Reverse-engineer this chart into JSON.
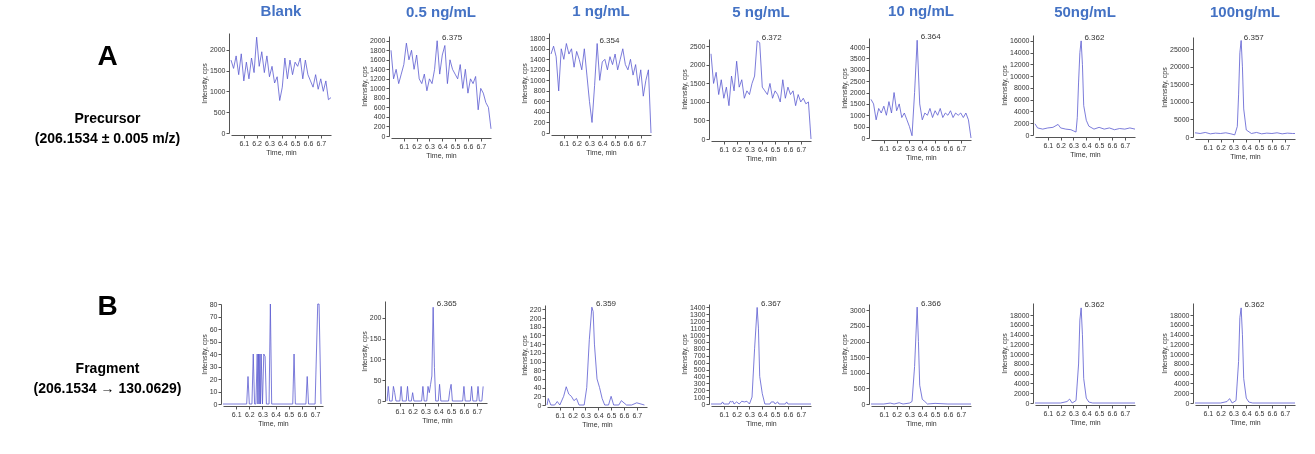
{
  "chart_data": [
    {
      "type": "line",
      "title": "Blank",
      "xlabel": "Time, min",
      "ylabel": "Intensity, cps",
      "annotations": [
        "A",
        "Precursor",
        "(206.1534 ± 0.005 m/z)"
      ],
      "xlim": [
        6.0,
        6.78
      ],
      "xticks": [
        6.1,
        6.2,
        6.3,
        6.4,
        6.5,
        6.6,
        6.7
      ],
      "ylim": [
        0,
        2400
      ],
      "yticks": [
        0,
        500,
        1000,
        1500,
        2000
      ],
      "x": [
        6.0,
        6.02,
        6.04,
        6.06,
        6.08,
        6.1,
        6.12,
        6.14,
        6.16,
        6.18,
        6.2,
        6.22,
        6.24,
        6.26,
        6.28,
        6.3,
        6.32,
        6.34,
        6.36,
        6.38,
        6.4,
        6.42,
        6.44,
        6.46,
        6.48,
        6.5,
        6.52,
        6.54,
        6.56,
        6.58,
        6.6,
        6.62,
        6.64,
        6.66,
        6.68,
        6.7,
        6.72,
        6.74,
        6.76,
        6.78
      ],
      "series": [
        {
          "color": "#5b5bd0",
          "values": [
            1750,
            1550,
            1850,
            1400,
            1900,
            1250,
            1700,
            1300,
            1800,
            1450,
            2300,
            1600,
            1950,
            1450,
            1850,
            1350,
            1600,
            1200,
            1350,
            780,
            1100,
            1800,
            1300,
            1750,
            1400,
            1700,
            1600,
            1800,
            1300,
            1750,
            1400,
            1250,
            1100,
            1400,
            1050,
            1300,
            1000,
            1250,
            800,
            850
          ]
        }
      ],
      "marker": "none",
      "grid": false
    },
    {
      "type": "line",
      "title": "0.5 ng/mL",
      "xlabel": "Time, min",
      "ylabel": "Intensity, cps",
      "annotations": [
        {
          "text": "6.375",
          "x": 6.375,
          "y": 2000
        }
      ],
      "xlim": [
        6.0,
        6.78
      ],
      "xticks": [
        6.1,
        6.2,
        6.3,
        6.4,
        6.5,
        6.6,
        6.7
      ],
      "ylim": [
        0,
        2100
      ],
      "yticks": [
        0,
        200,
        400,
        600,
        800,
        1000,
        1200,
        1400,
        1600,
        1800,
        2000
      ],
      "x": [
        6.0,
        6.02,
        6.04,
        6.06,
        6.08,
        6.1,
        6.12,
        6.14,
        6.16,
        6.18,
        6.2,
        6.22,
        6.24,
        6.26,
        6.28,
        6.3,
        6.32,
        6.34,
        6.36,
        6.38,
        6.4,
        6.42,
        6.44,
        6.46,
        6.48,
        6.5,
        6.52,
        6.54,
        6.56,
        6.58,
        6.6,
        6.62,
        6.64,
        6.66,
        6.68,
        6.7,
        6.72,
        6.74,
        6.76,
        6.78
      ],
      "series": [
        {
          "color": "#5b5bd0",
          "values": [
            1800,
            1200,
            1400,
            1100,
            1300,
            1500,
            1950,
            1600,
            1800,
            1400,
            1700,
            1200,
            1100,
            1300,
            950,
            1200,
            1100,
            1400,
            2000,
            1300,
            1700,
            1900,
            1100,
            1600,
            1400,
            1300,
            1200,
            1500,
            1000,
            1400,
            900,
            1200,
            1100,
            1250,
            550,
            1000,
            900,
            700,
            600,
            150
          ]
        }
      ],
      "marker": "none",
      "grid": false
    },
    {
      "type": "line",
      "title": "1 ng/mL",
      "xlabel": "Time, min",
      "ylabel": "Intensity, cps",
      "annotations": [
        {
          "text": "6.354",
          "x": 6.354,
          "y": 1700
        }
      ],
      "xlim": [
        6.0,
        6.78
      ],
      "xticks": [
        6.1,
        6.2,
        6.3,
        6.4,
        6.5,
        6.6,
        6.7
      ],
      "ylim": [
        0,
        1900
      ],
      "yticks": [
        0,
        200,
        400,
        600,
        800,
        1000,
        1200,
        1400,
        1600,
        1800
      ],
      "x": [
        6.0,
        6.02,
        6.04,
        6.06,
        6.08,
        6.1,
        6.12,
        6.14,
        6.16,
        6.18,
        6.2,
        6.22,
        6.24,
        6.26,
        6.28,
        6.3,
        6.32,
        6.34,
        6.36,
        6.38,
        6.4,
        6.42,
        6.44,
        6.46,
        6.48,
        6.5,
        6.52,
        6.54,
        6.56,
        6.58,
        6.6,
        6.62,
        6.64,
        6.66,
        6.68,
        6.7,
        6.72,
        6.74,
        6.76,
        6.78
      ],
      "series": [
        {
          "color": "#5b5bd0",
          "values": [
            1500,
            1650,
            1450,
            800,
            1600,
            1400,
            1700,
            1500,
            1600,
            1250,
            1550,
            1400,
            1200,
            1600,
            1100,
            600,
            200,
            900,
            1700,
            1000,
            1350,
            1400,
            1200,
            1450,
            1300,
            1500,
            1200,
            1400,
            1600,
            1300,
            1200,
            1400,
            1100,
            1300,
            900,
            1200,
            700,
            1000,
            1200,
            0
          ]
        }
      ],
      "marker": "none",
      "grid": false
    },
    {
      "type": "line",
      "title": "5 ng/mL",
      "xlabel": "Time, min",
      "ylabel": "Intensity, cps",
      "annotations": [
        {
          "text": "6.372",
          "x": 6.372,
          "y": 2650
        }
      ],
      "xlim": [
        6.0,
        6.78
      ],
      "xticks": [
        6.1,
        6.2,
        6.3,
        6.4,
        6.5,
        6.6,
        6.7
      ],
      "ylim": [
        0,
        2700
      ],
      "yticks": [
        0,
        500,
        1000,
        1500,
        2000,
        2500
      ],
      "x": [
        6.0,
        6.02,
        6.04,
        6.06,
        6.08,
        6.1,
        6.12,
        6.14,
        6.16,
        6.18,
        6.2,
        6.22,
        6.24,
        6.26,
        6.28,
        6.3,
        6.32,
        6.34,
        6.36,
        6.38,
        6.4,
        6.42,
        6.44,
        6.46,
        6.48,
        6.5,
        6.52,
        6.54,
        6.56,
        6.58,
        6.6,
        6.62,
        6.64,
        6.66,
        6.68,
        6.7,
        6.72,
        6.74,
        6.76,
        6.78
      ],
      "series": [
        {
          "color": "#5b5bd0",
          "values": [
            2300,
            1500,
            1800,
            1200,
            1600,
            1100,
            1400,
            900,
            1700,
            1300,
            2100,
            1400,
            1600,
            1100,
            1300,
            1200,
            1500,
            1700,
            2650,
            2600,
            1400,
            1300,
            1200,
            1500,
            1100,
            1300,
            1200,
            1000,
            1600,
            1100,
            1400,
            1200,
            1300,
            900,
            1200,
            1000,
            1100,
            950,
            1000,
            0
          ]
        }
      ],
      "marker": "none",
      "grid": false
    },
    {
      "type": "line",
      "title": "10 ng/mL",
      "xlabel": "Time, min",
      "ylabel": "Intensity, cps",
      "annotations": [
        {
          "text": "6.364",
          "x": 6.364,
          "y": 4300
        }
      ],
      "xlim": [
        6.0,
        6.78
      ],
      "xticks": [
        6.1,
        6.2,
        6.3,
        6.4,
        6.5,
        6.6,
        6.7
      ],
      "ylim": [
        0,
        4400
      ],
      "yticks": [
        0,
        500,
        1000,
        1500,
        2000,
        2500,
        3000,
        3500,
        4000
      ],
      "x": [
        6.0,
        6.02,
        6.04,
        6.06,
        6.08,
        6.1,
        6.12,
        6.14,
        6.16,
        6.18,
        6.2,
        6.22,
        6.24,
        6.26,
        6.28,
        6.3,
        6.32,
        6.34,
        6.36,
        6.38,
        6.4,
        6.42,
        6.44,
        6.46,
        6.48,
        6.5,
        6.52,
        6.54,
        6.56,
        6.58,
        6.6,
        6.62,
        6.64,
        6.66,
        6.68,
        6.7,
        6.72,
        6.74,
        6.76,
        6.78
      ],
      "series": [
        {
          "color": "#5b5bd0",
          "values": [
            1700,
            1500,
            800,
            1300,
            1100,
            1400,
            1000,
            1600,
            1100,
            2000,
            1200,
            1500,
            900,
            1100,
            800,
            500,
            100,
            2000,
            4300,
            1500,
            800,
            1100,
            1000,
            1300,
            900,
            1200,
            1000,
            1300,
            900,
            1100,
            1000,
            1200,
            900,
            1100,
            1000,
            1100,
            900,
            1100,
            800,
            0
          ]
        }
      ],
      "marker": "none",
      "grid": false
    },
    {
      "type": "line",
      "title": "50ng/mL",
      "xlabel": "Time, min",
      "ylabel": "Intensity, cps",
      "annotations": [
        {
          "text": "6.362",
          "x": 6.362,
          "y": 16000
        }
      ],
      "xlim": [
        6.0,
        6.78
      ],
      "xticks": [
        6.1,
        6.2,
        6.3,
        6.4,
        6.5,
        6.6,
        6.7
      ],
      "ylim": [
        0,
        17000
      ],
      "yticks": [
        0,
        2000,
        4000,
        6000,
        8000,
        10000,
        12000,
        14000,
        16000
      ],
      "x": [
        6.0,
        6.02,
        6.06,
        6.1,
        6.14,
        6.18,
        6.2,
        6.24,
        6.28,
        6.3,
        6.32,
        6.33,
        6.34,
        6.35,
        6.36,
        6.37,
        6.38,
        6.4,
        6.42,
        6.46,
        6.5,
        6.54,
        6.58,
        6.62,
        6.66,
        6.7,
        6.74,
        6.78
      ],
      "series": [
        {
          "color": "#5b5bd0",
          "values": [
            1900,
            1200,
            1000,
            1200,
            1300,
            1800,
            1200,
            1000,
            900,
            700,
            500,
            3000,
            9000,
            14000,
            16000,
            12000,
            5000,
            2500,
            1500,
            1000,
            1300,
            1000,
            1200,
            900,
            1100,
            1000,
            1200,
            1000
          ]
        }
      ],
      "marker": "none",
      "grid": false
    },
    {
      "type": "line",
      "title": "100ng/mL",
      "xlabel": "Time, min",
      "ylabel": "Intensity, cps",
      "annotations": [
        {
          "text": "6.357",
          "x": 6.357,
          "y": 27500
        }
      ],
      "xlim": [
        6.0,
        6.78
      ],
      "xticks": [
        6.1,
        6.2,
        6.3,
        6.4,
        6.5,
        6.6,
        6.7
      ],
      "ylim": [
        0,
        28500
      ],
      "yticks": [
        0,
        5000,
        10000,
        15000,
        20000,
        25000
      ],
      "x": [
        6.0,
        6.04,
        6.08,
        6.12,
        6.16,
        6.2,
        6.24,
        6.28,
        6.31,
        6.33,
        6.34,
        6.35,
        6.36,
        6.37,
        6.38,
        6.4,
        6.44,
        6.48,
        6.52,
        6.56,
        6.6,
        6.64,
        6.68,
        6.72,
        6.76,
        6.78
      ],
      "series": [
        {
          "color": "#5b5bd0",
          "values": [
            1200,
            1000,
            1300,
            900,
            1100,
            1000,
            1200,
            900,
            600,
            3000,
            12000,
            24000,
            27500,
            20000,
            8000,
            2000,
            1000,
            1300,
            900,
            1100,
            1000,
            1200,
            900,
            1100,
            1000,
            1000
          ]
        }
      ],
      "marker": "none",
      "grid": false
    },
    {
      "type": "line",
      "xlabel": "Time, min",
      "ylabel": "Intensity, cps",
      "annotations": [
        "B",
        "Fragment",
        "(206.1534 → 130.0629)"
      ],
      "xlim": [
        6.0,
        6.76
      ],
      "xticks": [
        6.1,
        6.2,
        6.3,
        6.4,
        6.5,
        6.6,
        6.7
      ],
      "ylim": [
        0,
        80
      ],
      "yticks": [
        0,
        10,
        20,
        30,
        40,
        50,
        60,
        70,
        80
      ],
      "x": [
        6.0,
        6.18,
        6.19,
        6.2,
        6.22,
        6.23,
        6.24,
        6.25,
        6.26,
        6.265,
        6.27,
        6.275,
        6.28,
        6.285,
        6.29,
        6.3,
        6.31,
        6.32,
        6.33,
        6.35,
        6.36,
        6.37,
        6.53,
        6.54,
        6.55,
        6.63,
        6.64,
        6.65,
        6.7,
        6.71,
        6.72,
        6.73,
        6.745
      ],
      "series": [
        {
          "color": "#5b5bd0",
          "values": [
            0,
            0,
            22,
            0,
            0,
            40,
            0,
            0,
            40,
            0,
            40,
            0,
            40,
            0,
            40,
            0,
            40,
            38,
            0,
            0,
            80,
            0,
            0,
            40,
            0,
            0,
            22,
            0,
            0,
            40,
            80,
            80,
            0
          ]
        }
      ],
      "marker": "none",
      "grid": false
    },
    {
      "type": "line",
      "xlabel": "Time, min",
      "ylabel": "Intensity, cps",
      "annotations": [
        {
          "text": "6.365",
          "x": 6.365,
          "y": 225
        }
      ],
      "xlim": [
        6.0,
        6.78
      ],
      "xticks": [
        6.1,
        6.2,
        6.3,
        6.4,
        6.5,
        6.6,
        6.7
      ],
      "ylim": [
        0,
        240
      ],
      "yticks": [
        0,
        50,
        100,
        150,
        200
      ],
      "x": [
        6.0,
        6.01,
        6.02,
        6.04,
        6.05,
        6.06,
        6.07,
        6.1,
        6.11,
        6.12,
        6.15,
        6.16,
        6.17,
        6.19,
        6.2,
        6.21,
        6.27,
        6.28,
        6.29,
        6.31,
        6.32,
        6.33,
        6.34,
        6.35,
        6.36,
        6.37,
        6.38,
        6.4,
        6.41,
        6.42,
        6.48,
        6.49,
        6.5,
        6.51,
        6.59,
        6.6,
        6.61,
        6.65,
        6.66,
        6.67,
        6.7,
        6.71,
        6.72,
        6.74,
        6.75
      ],
      "series": [
        {
          "color": "#5b5bd0",
          "values": [
            0,
            35,
            0,
            0,
            35,
            20,
            0,
            0,
            35,
            0,
            0,
            35,
            0,
            0,
            20,
            0,
            0,
            35,
            0,
            0,
            35,
            20,
            40,
            60,
            225,
            80,
            0,
            0,
            40,
            0,
            0,
            25,
            40,
            0,
            0,
            35,
            0,
            0,
            35,
            0,
            0,
            35,
            0,
            0,
            35
          ]
        }
      ],
      "marker": "none",
      "grid": false
    },
    {
      "type": "line",
      "xlabel": "Time, min",
      "ylabel": "Intensity, cps",
      "annotations": [
        {
          "text": "6.359",
          "x": 6.359,
          "y": 225
        }
      ],
      "xlim": [
        6.0,
        6.78
      ],
      "xticks": [
        6.1,
        6.2,
        6.3,
        6.4,
        6.5,
        6.6,
        6.7
      ],
      "ylim": [
        0,
        230
      ],
      "yticks": [
        0,
        20,
        40,
        60,
        80,
        100,
        120,
        140,
        160,
        180,
        200,
        220
      ],
      "x": [
        6.0,
        6.01,
        6.03,
        6.06,
        6.08,
        6.1,
        6.13,
        6.15,
        6.17,
        6.19,
        6.21,
        6.23,
        6.25,
        6.29,
        6.31,
        6.33,
        6.35,
        6.36,
        6.37,
        6.39,
        6.41,
        6.43,
        6.45,
        6.48,
        6.5,
        6.52,
        6.56,
        6.58,
        6.62,
        6.66,
        6.7,
        6.76
      ],
      "series": [
        {
          "color": "#5b5bd0",
          "values": [
            0,
            15,
            0,
            0,
            8,
            0,
            20,
            42,
            25,
            20,
            10,
            15,
            0,
            0,
            40,
            150,
            225,
            215,
            140,
            60,
            40,
            15,
            0,
            0,
            20,
            0,
            0,
            10,
            0,
            0,
            5,
            0
          ]
        }
      ],
      "marker": "none",
      "grid": false
    },
    {
      "type": "line",
      "xlabel": "Time, min",
      "ylabel": "Intensity, cps",
      "annotations": [
        {
          "text": "6.367",
          "x": 6.367,
          "y": 1400
        }
      ],
      "xlim": [
        6.0,
        6.78
      ],
      "xticks": [
        6.1,
        6.2,
        6.3,
        6.4,
        6.5,
        6.6,
        6.7
      ],
      "ylim": [
        0,
        1450
      ],
      "yticks": [
        0,
        100,
        200,
        300,
        400,
        500,
        600,
        700,
        800,
        900,
        1000,
        1100,
        1200,
        1300,
        1400
      ],
      "x": [
        6.0,
        6.08,
        6.09,
        6.1,
        6.14,
        6.15,
        6.16,
        6.17,
        6.18,
        6.2,
        6.22,
        6.24,
        6.26,
        6.28,
        6.3,
        6.32,
        6.34,
        6.36,
        6.37,
        6.38,
        6.4,
        6.42,
        6.46,
        6.47,
        6.49,
        6.5,
        6.52,
        6.53,
        6.58,
        6.59,
        6.6,
        6.78
      ],
      "series": [
        {
          "color": "#5b5bd0",
          "values": [
            0,
            0,
            30,
            0,
            0,
            40,
            30,
            40,
            0,
            30,
            0,
            40,
            30,
            40,
            0,
            100,
            800,
            1400,
            1100,
            400,
            150,
            0,
            0,
            30,
            30,
            0,
            30,
            0,
            0,
            30,
            0,
            0
          ]
        }
      ],
      "marker": "none",
      "grid": false
    },
    {
      "type": "line",
      "xlabel": "Time, min",
      "ylabel": "Intensity, cps",
      "annotations": [
        {
          "text": "6.366",
          "x": 6.366,
          "y": 3100
        }
      ],
      "xlim": [
        6.0,
        6.78
      ],
      "xticks": [
        6.1,
        6.2,
        6.3,
        6.4,
        6.5,
        6.6,
        6.7
      ],
      "ylim": [
        0,
        3200
      ],
      "yticks": [
        0,
        500,
        1000,
        1500,
        2000,
        2500,
        3000
      ],
      "x": [
        6.0,
        6.1,
        6.15,
        6.18,
        6.22,
        6.25,
        6.3,
        6.32,
        6.34,
        6.36,
        6.37,
        6.38,
        6.4,
        6.42,
        6.44,
        6.5,
        6.6,
        6.78
      ],
      "series": [
        {
          "color": "#5b5bd0",
          "values": [
            0,
            0,
            30,
            0,
            40,
            0,
            30,
            80,
            1200,
            3100,
            2000,
            600,
            150,
            80,
            0,
            20,
            0,
            0
          ]
        }
      ],
      "marker": "none",
      "grid": false
    },
    {
      "type": "line",
      "xlabel": "Time, min",
      "ylabel": "Intensity, cps",
      "annotations": [
        {
          "text": "6.362",
          "x": 6.362,
          "y": 19500
        }
      ],
      "xlim": [
        6.0,
        6.78
      ],
      "xticks": [
        6.1,
        6.2,
        6.3,
        6.4,
        6.5,
        6.6,
        6.7
      ],
      "ylim": [
        0,
        20500
      ],
      "yticks": [
        0,
        2000,
        4000,
        6000,
        8000,
        10000,
        12000,
        14000,
        16000,
        18000
      ],
      "x": [
        6.0,
        6.2,
        6.25,
        6.27,
        6.29,
        6.32,
        6.34,
        6.35,
        6.36,
        6.37,
        6.38,
        6.4,
        6.42,
        6.45,
        6.78
      ],
      "series": [
        {
          "color": "#5b5bd0",
          "values": [
            0,
            0,
            300,
            800,
            0,
            500,
            8000,
            17000,
            19500,
            14000,
            5000,
            1000,
            200,
            0,
            0
          ]
        }
      ],
      "marker": "none",
      "grid": false
    },
    {
      "type": "line",
      "xlabel": "Time, min",
      "ylabel": "Intensity, cps",
      "annotations": [
        {
          "text": "6.362",
          "x": 6.362,
          "y": 19500
        }
      ],
      "xlim": [
        6.0,
        6.78
      ],
      "xticks": [
        6.1,
        6.2,
        6.3,
        6.4,
        6.5,
        6.6,
        6.7
      ],
      "ylim": [
        0,
        20500
      ],
      "yticks": [
        0,
        2000,
        4000,
        6000,
        8000,
        10000,
        12000,
        14000,
        16000,
        18000
      ],
      "x": [
        6.0,
        6.2,
        6.25,
        6.27,
        6.29,
        6.32,
        6.34,
        6.35,
        6.36,
        6.37,
        6.38,
        6.4,
        6.42,
        6.45,
        6.78
      ],
      "series": [
        {
          "color": "#5b5bd0",
          "values": [
            0,
            0,
            300,
            900,
            0,
            500,
            8500,
            17500,
            19500,
            14000,
            5000,
            1000,
            200,
            0,
            0
          ]
        }
      ],
      "marker": "none",
      "grid": false
    }
  ]
}
